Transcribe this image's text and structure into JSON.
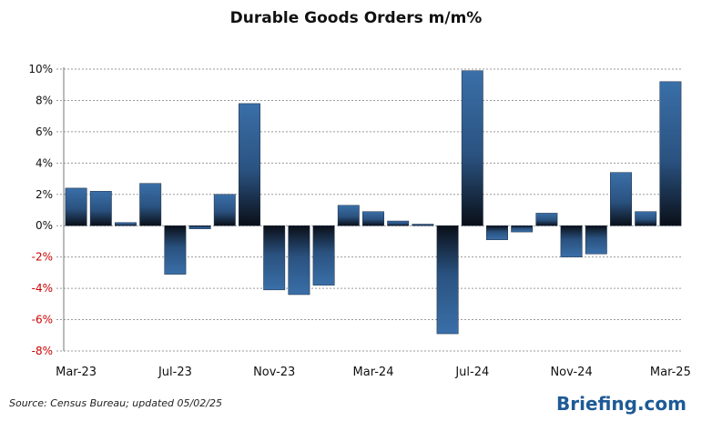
{
  "chart_data": {
    "type": "bar",
    "title": "Durable Goods Orders m/m%",
    "source": "Source: Census Bureau; updated 05/02/25",
    "brand": "Briefing.com",
    "categories": [
      "Mar-23",
      "Apr-23",
      "May-23",
      "Jun-23",
      "Jul-23",
      "Aug-23",
      "Sep-23",
      "Oct-23",
      "Nov-23",
      "Dec-23",
      "Jan-24",
      "Feb-24",
      "Mar-24",
      "Apr-24",
      "May-24",
      "Jun-24",
      "Jul-24",
      "Aug-24",
      "Sep-24",
      "Oct-24",
      "Nov-24",
      "Dec-24",
      "Jan-25",
      "Feb-25",
      "Mar-25"
    ],
    "values": [
      2.4,
      2.2,
      0.2,
      2.7,
      -3.1,
      -0.2,
      2.0,
      7.8,
      -4.1,
      -4.4,
      -3.8,
      1.3,
      0.9,
      0.3,
      0.1,
      -6.9,
      9.9,
      -0.9,
      -0.4,
      0.8,
      -2.0,
      -1.8,
      3.4,
      0.9,
      9.2
    ],
    "x_tick_labels": [
      "Mar-23",
      "Jul-23",
      "Nov-23",
      "Mar-24",
      "Jul-24",
      "Nov-24",
      "Mar-25"
    ],
    "x_tick_indices": [
      0,
      4,
      8,
      12,
      16,
      20,
      24
    ],
    "y_ticks": [
      10,
      8,
      6,
      4,
      2,
      0,
      -2,
      -4,
      -6,
      -8
    ],
    "y_tick_labels": [
      "10%",
      "8%",
      "6%",
      "4%",
      "2%",
      "0%",
      "-2%",
      "-4%",
      "-6%",
      "-8%"
    ],
    "ylim": [
      -8,
      10
    ],
    "grid": true,
    "colors": {
      "bar_top": "#3a6fa8",
      "bar_bottom": "#0a0f18",
      "negative_label": "#cc0000",
      "brand": "#1e5a96"
    }
  }
}
